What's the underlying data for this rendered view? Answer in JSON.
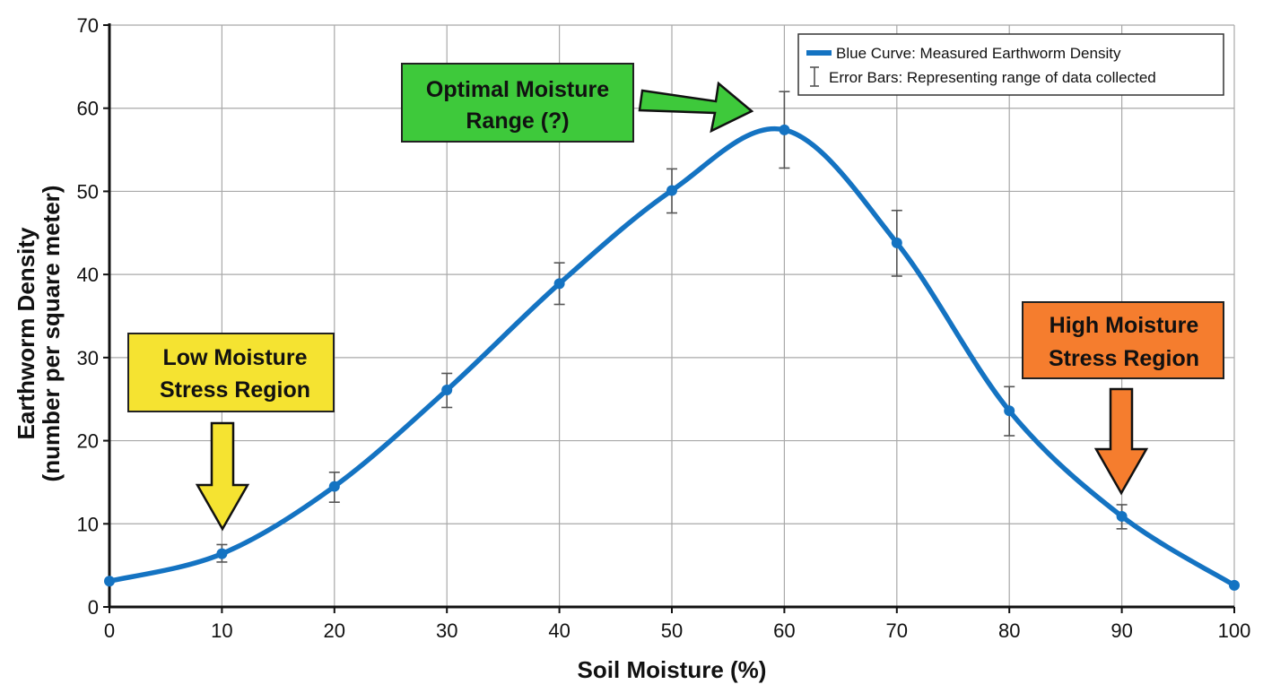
{
  "chart_data": {
    "type": "line",
    "xlabel": "Soil Moisture (%)",
    "ylabel": [
      "Earthworm Density",
      "(number per square meter)"
    ],
    "xlim": [
      0,
      100
    ],
    "ylim": [
      0,
      70
    ],
    "x_ticks": [
      0,
      10,
      20,
      30,
      40,
      50,
      60,
      70,
      80,
      90,
      100
    ],
    "y_ticks": [
      0,
      10,
      20,
      30,
      40,
      50,
      60,
      70
    ],
    "grid": true,
    "legend_position": "top-right",
    "legend": [
      {
        "symbol": "line",
        "label": "Blue Curve: Measured Earthworm Density"
      },
      {
        "symbol": "errorbar",
        "label": "Error Bars: Representing range of data collected"
      }
    ],
    "series": [
      {
        "color": "#1473c2",
        "x": [
          0,
          10,
          20,
          30,
          40,
          50,
          60,
          70,
          80,
          90,
          100
        ],
        "y": [
          3.1,
          6.4,
          14.5,
          26.1,
          38.9,
          50.1,
          57.4,
          43.8,
          23.6,
          10.9,
          2.6
        ],
        "error_low": [
          null,
          5.4,
          12.6,
          24.0,
          36.4,
          47.4,
          52.8,
          39.8,
          20.6,
          9.4,
          null
        ],
        "error_high": [
          null,
          7.5,
          16.2,
          28.1,
          41.4,
          52.7,
          62.0,
          47.7,
          26.5,
          12.3,
          null
        ]
      }
    ],
    "annotations": [
      {
        "lines": [
          "Optimal Moisture",
          "Range (?)"
        ],
        "color": "#3ec93b",
        "arrow_direction": "right",
        "arrow_target": [
          57,
          60
        ]
      },
      {
        "lines": [
          "Low Moisture",
          "Stress Region"
        ],
        "color": "#f5e331",
        "arrow_direction": "down",
        "arrow_target": [
          10,
          9
        ]
      },
      {
        "lines": [
          "High Moisture",
          "Stress Region"
        ],
        "color": "#f57d2e",
        "arrow_direction": "down",
        "arrow_target": [
          90,
          13.5
        ]
      }
    ]
  }
}
